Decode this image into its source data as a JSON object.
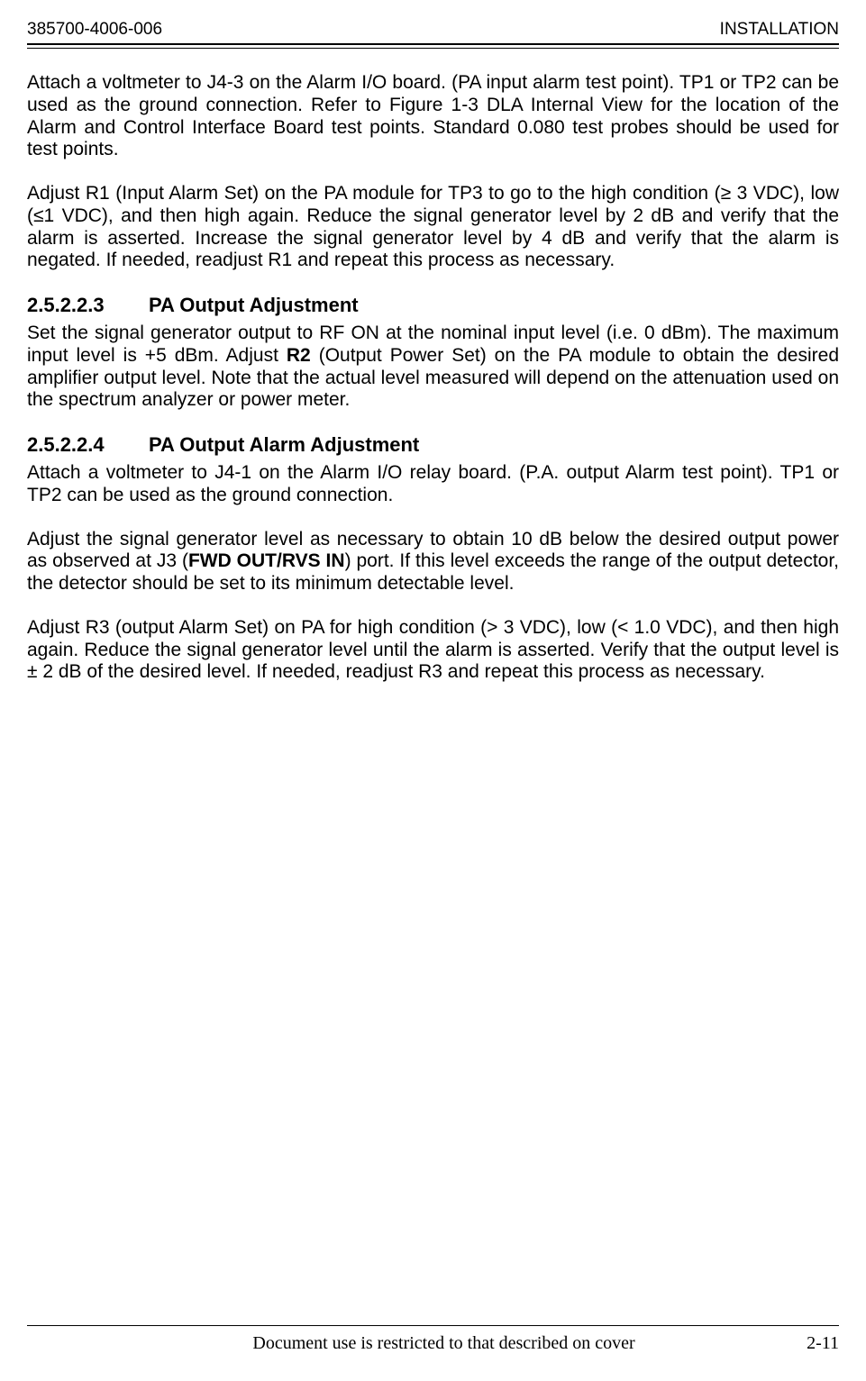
{
  "header": {
    "doc_number": "385700-4006-006",
    "section": "INSTALLATION"
  },
  "content": {
    "p1": "Attach a voltmeter to J4-3 on the Alarm I/O board.  (PA input alarm test point).  TP1 or TP2 can be used as the ground connection.  Refer to Figure 1-3 DLA Internal View for the location of the Alarm and Control Interface Board test points.  Standard 0.080 test probes should be used for test points.",
    "p2": "Adjust R1 (Input Alarm Set) on the PA module for TP3 to go to the high condition (≥ 3 VDC), low (≤1 VDC), and then high again.  Reduce the signal generator level by 2 dB and verify that the alarm is asserted. Increase the signal generator level by 4 dB and verify that the alarm is negated.  If needed, readjust R1 and repeat this process as necessary.",
    "h1_num": "2.5.2.2.3",
    "h1_title": "PA Output Adjustment",
    "p3_a": "Set the signal generator output to RF ON at the nominal input level (i.e. 0 dBm).  The maximum input level is +5 dBm.  Adjust ",
    "p3_bold": "R2",
    "p3_b": " (Output Power Set) on the PA module to obtain the desired amplifier output level.  Note that the actual level measured will depend on the attenuation used on the spectrum analyzer or power meter.",
    "h2_num": "2.5.2.2.4",
    "h2_title": "PA Output Alarm Adjustment",
    "p4": "Attach a voltmeter to J4-1 on the Alarm I/O relay board. (P.A. output Alarm test point). TP1 or TP2 can be used as the ground connection.",
    "p5_a": "Adjust the signal generator level as necessary to obtain 10 dB below the desired output power as observed at J3 (",
    "p5_bold": "FWD OUT/RVS IN",
    "p5_b": ") port. If this level exceeds the range of the output detector, the detector should be set to its minimum detectable level.",
    "p6": "Adjust R3 (output Alarm Set) on PA for high condition (> 3 VDC), low (< 1.0 VDC), and then high again. Reduce the signal generator level until the alarm is asserted. Verify that the output level is ± 2 dB of the desired level.  If needed, readjust R3 and repeat this process as necessary."
  },
  "footer": {
    "center": "Document use is restricted to that described on cover",
    "page": "2-11"
  }
}
